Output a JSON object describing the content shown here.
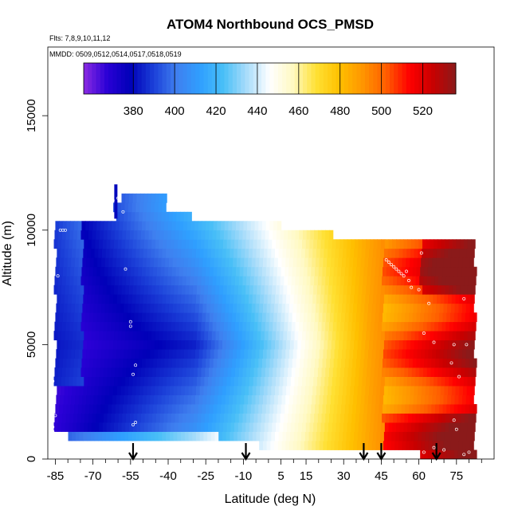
{
  "chart_data": {
    "type": "heatmap",
    "title": "ATOM4 Northbound OCS_PMSD",
    "flights_label": "Flts: 7,8,9,10,11,12",
    "dates_label": "MMDD: 0509,0512,0514,0517,0518,0519",
    "xlabel": "Latitude (deg N)",
    "ylabel": "Altitude (m)",
    "xlim": [
      -88,
      90
    ],
    "ylim": [
      0,
      18000
    ],
    "x_ticks": [
      -85,
      -70,
      -55,
      -40,
      -25,
      -10,
      5,
      15,
      30,
      45,
      60,
      75
    ],
    "x_minor_ticks": [
      -80,
      -75,
      -65,
      -60,
      -50,
      -45,
      -35,
      -30,
      -20,
      -15,
      -5,
      0,
      10,
      20,
      25,
      35,
      40,
      50,
      55,
      65,
      70,
      80,
      85
    ],
    "y_ticks": [
      0,
      5000,
      10000,
      15000
    ],
    "colorbar": {
      "ticks": [
        380,
        400,
        420,
        440,
        460,
        480,
        500,
        520
      ],
      "range": [
        356,
        536
      ],
      "colors": [
        "#8a2be2",
        "#2b00d6",
        "#0000b8",
        "#1b3fd8",
        "#3f7fef",
        "#2f9fff",
        "#48bff7",
        "#a8dcfa",
        "#ffffff",
        "#fff9c2",
        "#ffe033",
        "#ffc000",
        "#ff9500",
        "#ff5e00",
        "#ff0000",
        "#c80000",
        "#8b1a1a"
      ]
    },
    "arrows_latitude": [
      -54,
      -9,
      38,
      45,
      67
    ],
    "points_note": "sample locations shown as small white circles",
    "field_description": "OCS mixing ratio (ppt) vs latitude and altitude: minimum ~375 near -55 N, 3-7 km; maximum ~530 near 80 N at low altitude"
  }
}
